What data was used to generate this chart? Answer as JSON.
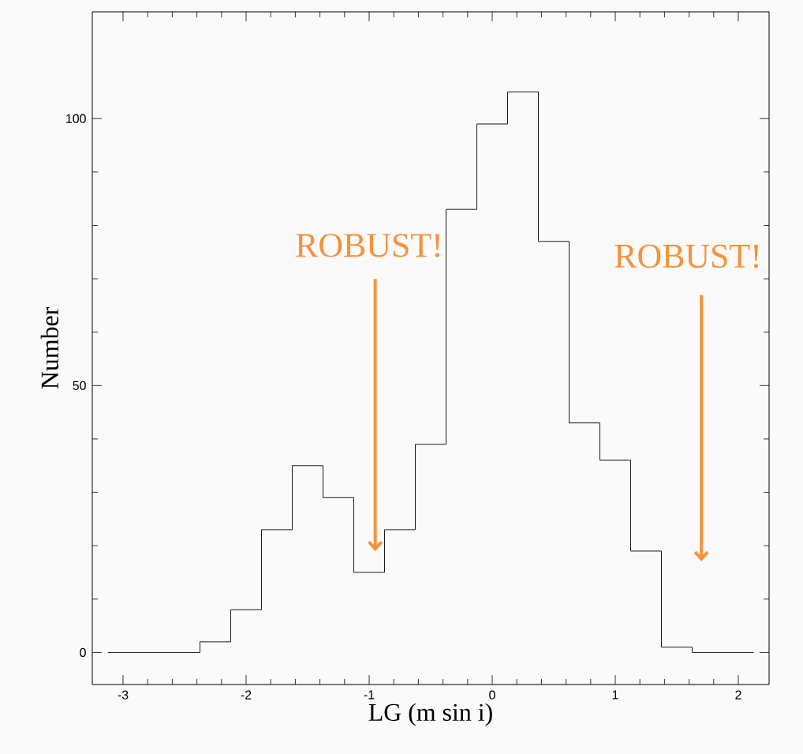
{
  "chart_data": {
    "type": "histogram",
    "xlabel": "LG (m sin i)",
    "ylabel": "Number",
    "bins": [
      -3.125,
      -2.875,
      -2.625,
      -2.375,
      -2.125,
      -1.875,
      -1.625,
      -1.375,
      -1.125,
      -0.875,
      -0.625,
      -0.375,
      -0.125,
      0.125,
      0.375,
      0.625,
      0.875,
      1.125,
      1.375,
      1.625,
      1.875,
      2.125
    ],
    "values": [
      0,
      0,
      0,
      2,
      8,
      23,
      35,
      29,
      15,
      23,
      39,
      83,
      99,
      105,
      77,
      43,
      36,
      19,
      1,
      0,
      0
    ],
    "color": "#000000",
    "xlim": [
      -3.25,
      2.25
    ],
    "ylim": [
      -6,
      120
    ],
    "xticks": [
      -3,
      -2,
      -1,
      0,
      1,
      2
    ],
    "yticks": [
      0,
      50,
      100
    ],
    "annotations": [
      "ROBUST!",
      "ROBUST!"
    ],
    "grid": false
  }
}
